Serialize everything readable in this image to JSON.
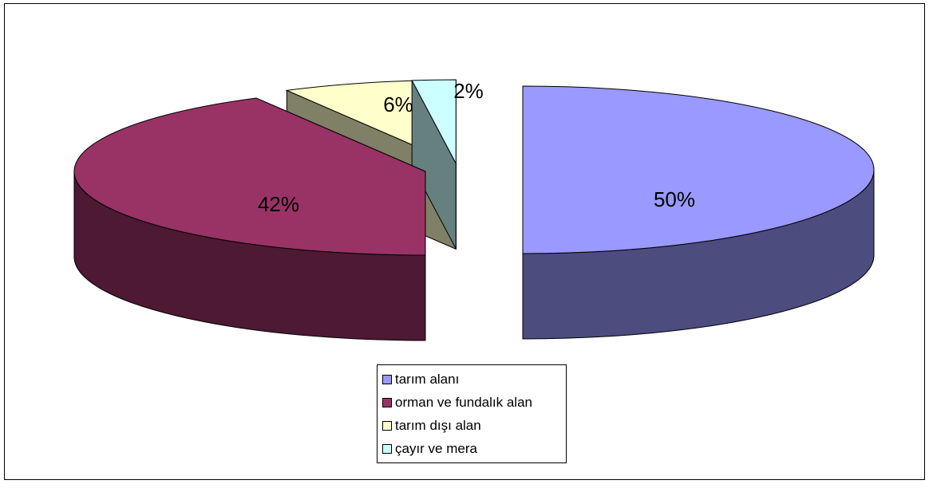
{
  "chart_data": {
    "type": "pie",
    "title": "",
    "style": "3d-exploded",
    "slices": [
      {
        "label": "tarım alanı",
        "value": 50,
        "display": "50%",
        "color": "#9999FF",
        "side_color": "#4C4C7F"
      },
      {
        "label": "orman ve fundalık alan",
        "value": 42,
        "display": "42%",
        "color": "#993366",
        "side_color": "#4D1933"
      },
      {
        "label": "tarım dışı alan",
        "value": 6,
        "display": "6%",
        "color": "#FFFFCC",
        "side_color": "#808066"
      },
      {
        "label": "çayır ve mera",
        "value": 2,
        "display": "2%",
        "color": "#CCFFFF",
        "side_color": "#668080"
      }
    ],
    "legend_position": "bottom"
  }
}
